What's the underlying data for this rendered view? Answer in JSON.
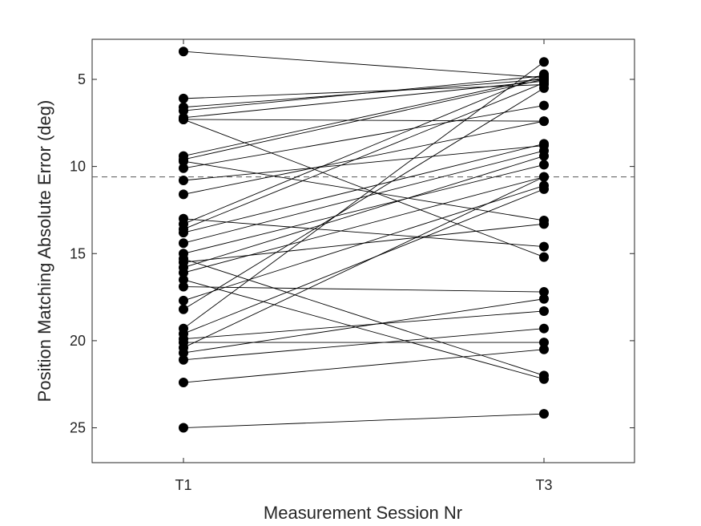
{
  "chart_data": {
    "type": "scatter",
    "title": "",
    "xlabel": "Measurement Session Nr",
    "ylabel": "Position Matching Absolute Error (deg)",
    "categories": [
      "T1",
      "T3"
    ],
    "ylim": [
      2.7,
      27.0
    ],
    "y_reversed": true,
    "yticks": [
      5,
      10,
      15,
      20,
      25
    ],
    "reference_line": 10.6,
    "grid": false,
    "colors": {
      "marks": "#000000",
      "axes": "#262626",
      "reference": "#555555"
    },
    "pairs": [
      {
        "t1": 3.4,
        "t3": 4.9
      },
      {
        "t1": 6.1,
        "t3": 5.3
      },
      {
        "t1": 6.6,
        "t3": 5.0
      },
      {
        "t1": 6.8,
        "t3": 4.8
      },
      {
        "t1": 7.2,
        "t3": 5.1
      },
      {
        "t1": 7.3,
        "t3": 7.4
      },
      {
        "t1": 7.3,
        "t3": 15.2
      },
      {
        "t1": 9.4,
        "t3": 4.9
      },
      {
        "t1": 9.6,
        "t3": 5.0
      },
      {
        "t1": 9.7,
        "t3": 13.1
      },
      {
        "t1": 10.1,
        "t3": 6.5
      },
      {
        "t1": 10.8,
        "t3": 8.8
      },
      {
        "t1": 11.6,
        "t3": 7.4
      },
      {
        "t1": 13.0,
        "t3": 14.6
      },
      {
        "t1": 13.3,
        "t3": 4.7
      },
      {
        "t1": 13.6,
        "t3": 5.2
      },
      {
        "t1": 13.8,
        "t3": 8.7
      },
      {
        "t1": 14.4,
        "t3": 9.1
      },
      {
        "t1": 15.0,
        "t3": 9.9
      },
      {
        "t1": 15.3,
        "t3": 22.0
      },
      {
        "t1": 15.5,
        "t3": 13.3
      },
      {
        "t1": 15.8,
        "t3": 9.4
      },
      {
        "t1": 16.1,
        "t3": 10.6
      },
      {
        "t1": 16.5,
        "t3": 22.2
      },
      {
        "t1": 16.9,
        "t3": 17.2
      },
      {
        "t1": 17.7,
        "t3": 11.1
      },
      {
        "t1": 18.2,
        "t3": 5.5
      },
      {
        "t1": 19.3,
        "t3": 4.0
      },
      {
        "t1": 19.6,
        "t3": 11.3
      },
      {
        "t1": 19.9,
        "t3": 18.3
      },
      {
        "t1": 20.1,
        "t3": 20.1
      },
      {
        "t1": 20.4,
        "t3": 10.6
      },
      {
        "t1": 20.7,
        "t3": 17.6
      },
      {
        "t1": 21.1,
        "t3": 19.3
      },
      {
        "t1": 22.4,
        "t3": 20.5
      },
      {
        "t1": 25.0,
        "t3": 24.2
      }
    ]
  }
}
